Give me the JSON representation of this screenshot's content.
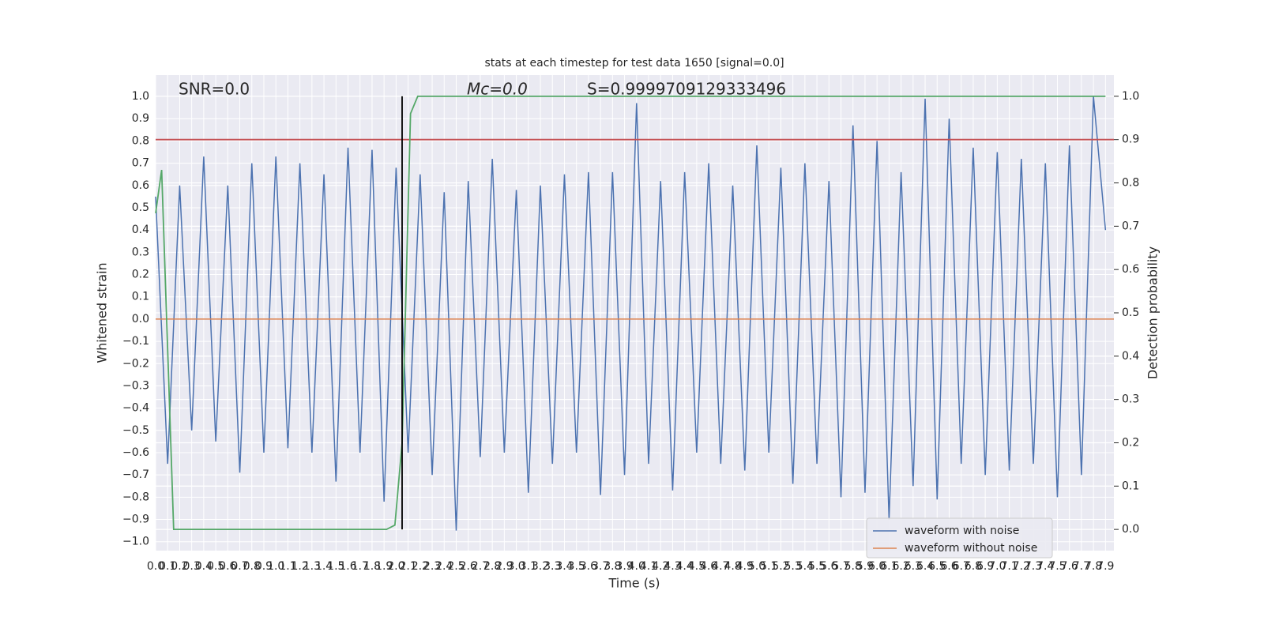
{
  "chart_data": {
    "type": "line",
    "title": "stats at each timestep for test data 1650 [signal=0.0]",
    "xlabel": "Time (s)",
    "ylabel": "Whitened strain",
    "y2label": "Detection probability",
    "annotations": [
      "SNR=0.0",
      "Mc=0.0",
      "S=0.9999709129333496"
    ],
    "xlim": [
      0,
      7.97
    ],
    "ylim": [
      -1.04,
      1.096
    ],
    "y2lim": [
      -0.049,
      1.049
    ],
    "xticks": [
      {
        "value": 0,
        "label": "0.0"
      },
      0.1,
      0.2,
      0.3,
      0.4,
      0.5,
      0.6,
      0.7,
      0.8,
      0.9,
      {
        "value": 1,
        "label": "1.0"
      },
      1.1,
      1.2,
      1.3,
      1.4,
      1.5,
      1.6,
      1.7,
      1.8,
      1.9,
      {
        "value": 2,
        "label": "2.0"
      },
      2.1,
      2.2,
      2.3,
      2.4,
      2.5,
      2.6,
      2.7,
      2.8,
      2.9,
      {
        "value": 3,
        "label": "3.0"
      },
      3.1,
      3.2,
      3.3,
      3.4,
      3.5,
      3.6,
      3.7,
      3.8,
      3.9,
      {
        "value": 4,
        "label": "4.0"
      },
      4.1,
      4.2,
      4.3,
      4.4,
      4.5,
      4.6,
      4.7,
      4.8,
      4.9,
      {
        "value": 5,
        "label": "5.0"
      },
      5.1,
      5.2,
      5.3,
      5.4,
      5.5,
      5.6,
      5.7,
      5.8,
      5.9,
      {
        "value": 6,
        "label": "6.0"
      },
      6.1,
      6.2,
      6.3,
      6.4,
      6.5,
      6.6,
      6.7,
      6.8,
      6.9,
      {
        "value": 7,
        "label": "7.0"
      },
      7.1,
      7.2,
      7.3,
      7.4,
      7.5,
      7.6,
      7.7,
      7.8,
      7.9
    ],
    "yticks": [
      {
        "value": -1,
        "label": "−1.0"
      },
      {
        "value": -0.9,
        "label": "−0.9"
      },
      {
        "value": -0.8,
        "label": "−0.8"
      },
      {
        "value": -0.7,
        "label": "−0.7"
      },
      {
        "value": -0.6,
        "label": "−0.6"
      },
      {
        "value": -0.5,
        "label": "−0.5"
      },
      {
        "value": -0.4,
        "label": "−0.4"
      },
      {
        "value": -0.3,
        "label": "−0.3"
      },
      {
        "value": -0.2,
        "label": "−0.2"
      },
      {
        "value": -0.1,
        "label": "−0.1"
      },
      {
        "value": 0,
        "label": "0.0"
      },
      0.1,
      0.2,
      0.3,
      0.4,
      0.5,
      0.6,
      0.7,
      0.8,
      0.9,
      {
        "value": 1,
        "label": "1.0"
      }
    ],
    "y2ticks": [
      {
        "value": 0,
        "label": "0.0"
      },
      0.1,
      0.2,
      0.3,
      0.4,
      0.5,
      0.6,
      0.7,
      0.8,
      0.9,
      {
        "value": 1,
        "label": "1.0"
      }
    ],
    "grid": true,
    "legend": "lower right",
    "series": [
      {
        "name": "waveform with noise",
        "color": "#4c72b0",
        "x": [
          0,
          0.1,
          0.2,
          0.3,
          0.4,
          0.5,
          0.6,
          0.7,
          0.8,
          0.9,
          1,
          1.1,
          1.2,
          1.3,
          1.4,
          1.5,
          1.6,
          1.7,
          1.8,
          1.9,
          2,
          2.1,
          2.2,
          2.3,
          2.4,
          2.5,
          2.6,
          2.7,
          2.8,
          2.9,
          3,
          3.1,
          3.2,
          3.3,
          3.4,
          3.5,
          3.6,
          3.7,
          3.8,
          3.9,
          4,
          4.1,
          4.2,
          4.3,
          4.4,
          4.5,
          4.6,
          4.7,
          4.8,
          4.9,
          5,
          5.1,
          5.2,
          5.3,
          5.4,
          5.5,
          5.6,
          5.7,
          5.8,
          5.9,
          6,
          6.1,
          6.2,
          6.3,
          6.4,
          6.5,
          6.6,
          6.7,
          6.8,
          6.9,
          7,
          7.1,
          7.2,
          7.3,
          7.4,
          7.5,
          7.6,
          7.7,
          7.8,
          7.9
        ],
        "values": [
          0.55,
          -0.65,
          0.6,
          -0.5,
          0.73,
          -0.55,
          0.6,
          -0.69,
          0.7,
          -0.6,
          0.73,
          -0.58,
          0.7,
          -0.6,
          0.65,
          -0.73,
          0.77,
          -0.6,
          0.76,
          -0.82,
          0.68,
          -0.6,
          0.65,
          -0.7,
          0.57,
          -0.95,
          0.62,
          -0.62,
          0.72,
          -0.6,
          0.58,
          -0.78,
          0.6,
          -0.65,
          0.65,
          -0.6,
          0.66,
          -0.79,
          0.66,
          -0.7,
          0.97,
          -0.65,
          0.62,
          -0.77,
          0.66,
          -0.6,
          0.7,
          -0.65,
          0.6,
          -0.68,
          0.78,
          -0.6,
          0.68,
          -0.74,
          0.7,
          -0.65,
          0.62,
          -0.8,
          0.87,
          -0.78,
          0.8,
          -0.9,
          0.66,
          -0.75,
          0.99,
          -0.81,
          0.9,
          -0.65,
          0.77,
          -0.7,
          0.75,
          -0.68,
          0.72,
          -0.65,
          0.7,
          -0.8,
          0.78,
          -0.7,
          1.0,
          0.4
        ]
      },
      {
        "name": "waveform without noise",
        "color": "#dd8452",
        "x": [
          0,
          7.97
        ],
        "values": [
          0,
          0
        ]
      },
      {
        "color": "#c44e52",
        "axis": "y2",
        "x": [
          0,
          7.97
        ],
        "values": [
          0.9,
          0.9
        ]
      },
      {
        "color": "#55a868",
        "axis": "y2",
        "x": [
          0,
          0.05,
          0.15,
          0.23,
          1.92,
          1.99,
          2.05,
          2.12,
          2.18,
          7.9
        ],
        "values": [
          0.73,
          0.83,
          0.0,
          0.0,
          0.0,
          0.01,
          0.2,
          0.96,
          1.0,
          1.0
        ]
      },
      {
        "color": "#000000",
        "axis": "y2",
        "x": [
          2.05,
          2.05
        ],
        "values": [
          0,
          1
        ]
      }
    ]
  }
}
